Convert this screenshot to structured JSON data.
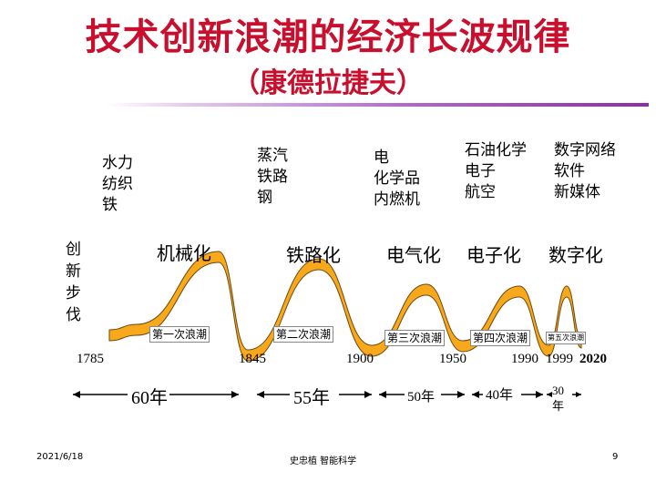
{
  "title": "技术创新浪潮的经济长波规律",
  "subtitle": "（康德拉捷夫）",
  "innovation_label": "创\n新\n步\n伐",
  "technologies": [
    {
      "text": "水力\n纺织\n铁"
    },
    {
      "text": "蒸汽\n铁路\n钢"
    },
    {
      "text": "电\n化学品\n内燃机"
    },
    {
      "text": "石油化学\n电子\n航空"
    },
    {
      "text": "数字网络\n软件\n新媒体"
    }
  ],
  "wave_labels": [
    "机械化",
    "铁路化",
    "电气化",
    "电子化",
    "数字化"
  ],
  "wave_names": [
    "第一次浪潮",
    "第二次浪潮",
    "第三次浪潮",
    "第四次浪潮",
    "第五次浪潮"
  ],
  "years": [
    "1785",
    "1845",
    "1900",
    "1950",
    "1990",
    "1999",
    "2020"
  ],
  "periods": [
    "60年",
    "55年",
    "50年",
    "40年",
    "30\n年"
  ],
  "footer": {
    "date": "2021/6/18",
    "author": "史忠植  智能科学",
    "page": "9"
  },
  "colors": {
    "title": "#c8102e",
    "wave_fill": "#f7a81b",
    "wave_edge": "#6e4a14",
    "rule": "#8b2fa8"
  }
}
